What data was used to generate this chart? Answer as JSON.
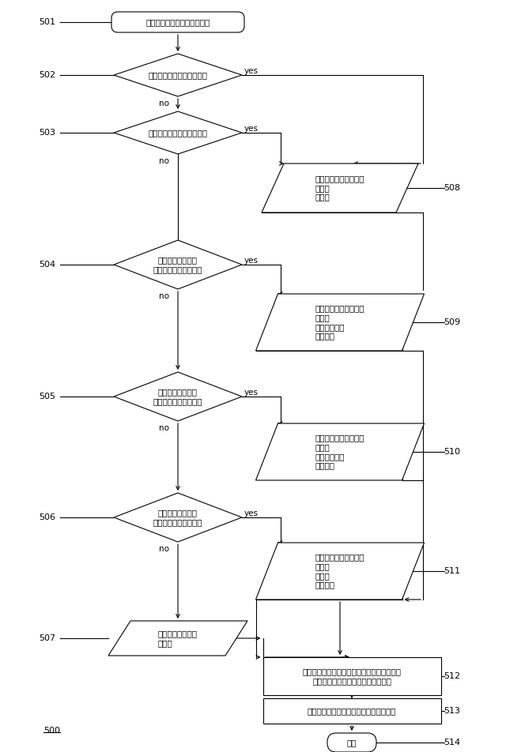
{
  "bg_color": "#ffffff",
  "fig_width": 6.4,
  "fig_height": 9.52,
  "lc": "#000000",
  "tc": "#000000",
  "node_labels": {
    "501": "走査順序リストを初期化する",
    "502": "イントラモードは平面か？",
    "503": "イントラモードはＤＣか？",
    "504": "イントラモードは\n水平に近い方向性か？",
    "505": "イントラモードは\n垂直に近い方向性か？",
    "506": "イントラモードは\n対角に近い方向性か？",
    "507": "走査順序リスト：\n・対角",
    "508": "走査パターンリスト：\n・Ｚ形\n・対角",
    "509": "走査パターンリスト：\n・垂直\n・垂直－対角\n・らせん",
    "510": "走査パターンリスト：\n・水平\n・水平－対角\n・らせん",
    "511": "走査パターンリスト：\n・対角\n・Ｚ形\n・らせん",
    "512": "パーティション、変換及び量子化パラメータ\nを用いて走査順序リストを調整する",
    "513": "適応的に生成された走査順序を追加する",
    "514": "終了"
  },
  "step_labels": {
    "501": "501",
    "502": "502",
    "503": "503",
    "504": "504",
    "505": "505",
    "506": "506",
    "507": "507",
    "508": "508",
    "509": "509",
    "510": "510",
    "511": "511",
    "512": "512",
    "513": "513",
    "514": "514",
    "500": "500"
  }
}
